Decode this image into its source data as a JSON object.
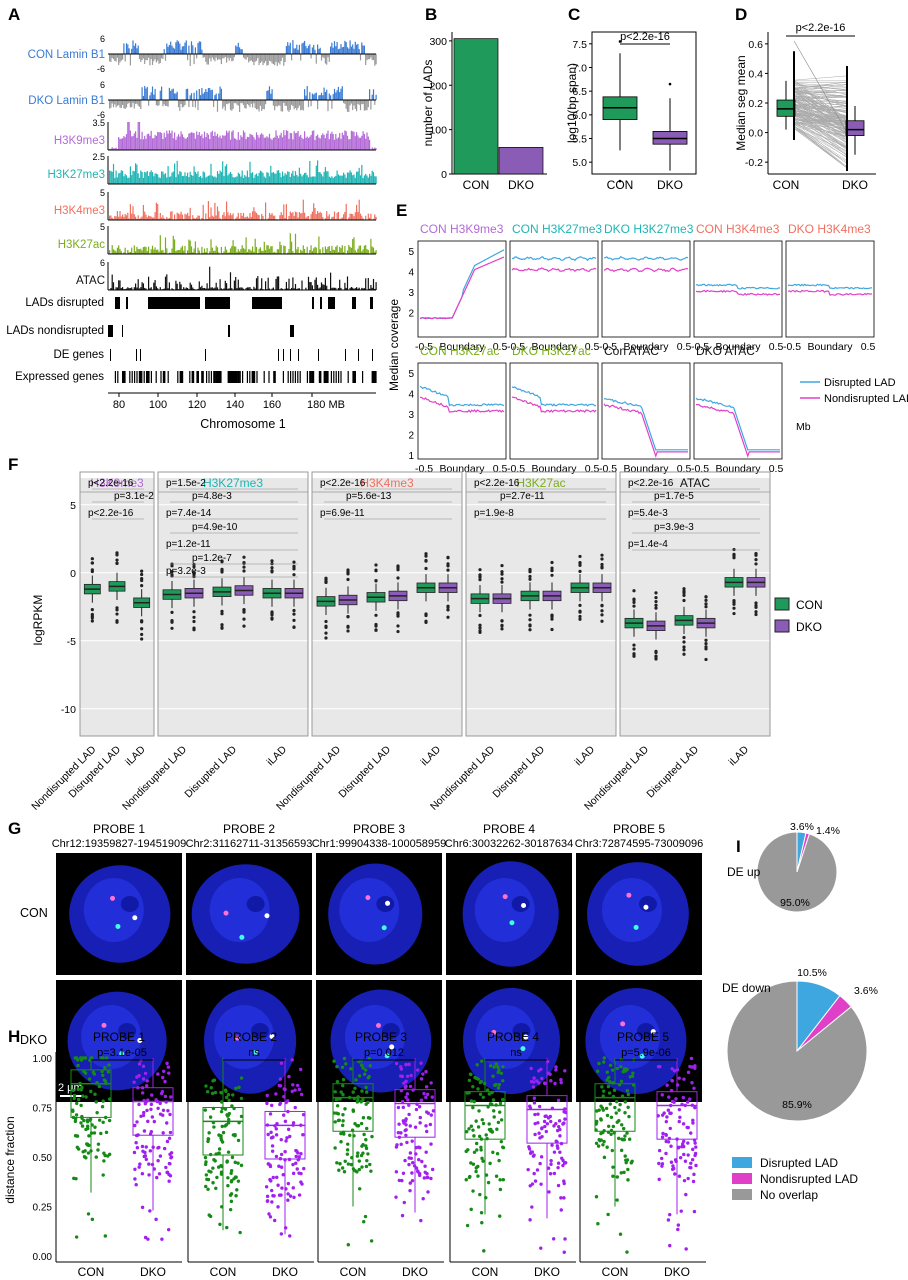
{
  "panel_letters": [
    "A",
    "B",
    "C",
    "D",
    "E",
    "F",
    "G",
    "H",
    "I"
  ],
  "panelA": {
    "tracks": [
      {
        "label": "CON Lamin B1",
        "color": "#3a7bd5",
        "top": "6",
        "bottom": "-6",
        "kind": "bi"
      },
      {
        "label": "DKO Lamin B1",
        "color": "#3a7bd5",
        "top": "6",
        "bottom": "-6",
        "kind": "bi"
      },
      {
        "label": "H3K9me3",
        "color": "#b36ad6",
        "top": "3.5",
        "bottom": "",
        "kind": "uni"
      },
      {
        "label": "H3K27me3",
        "color": "#1fb5b5",
        "top": "2.5",
        "bottom": "",
        "kind": "uni"
      },
      {
        "label": "H3K4me3",
        "color": "#f07060",
        "top": "5",
        "bottom": "",
        "kind": "uni"
      },
      {
        "label": "H3K27ac",
        "color": "#7aad1c",
        "top": "5",
        "bottom": "",
        "kind": "uni"
      },
      {
        "label": "ATAC",
        "color": "#111111",
        "top": "6",
        "bottom": "",
        "kind": "uni"
      }
    ],
    "bar_tracks": [
      "LADs disrupted",
      "LADs nondisrupted",
      "DE genes",
      "Expressed genes"
    ],
    "x_ticks": [
      "80",
      "100",
      "120",
      "140",
      "160",
      "180 MB"
    ],
    "xlabel": "Chromosome 1"
  },
  "chart_data": [
    {
      "id": "B",
      "type": "bar",
      "categories": [
        "CON",
        "DKO"
      ],
      "values": [
        305,
        60
      ],
      "ylabel": "number of LADs",
      "yticks": [
        "0",
        "100",
        "200",
        "300"
      ],
      "ylim": [
        0,
        320
      ],
      "colors": [
        "#1f9a5b",
        "#8a5cb5"
      ]
    },
    {
      "id": "C",
      "type": "box",
      "categories": [
        "CON",
        "DKO"
      ],
      "ylabel": "log10(bp span)",
      "yticks": [
        "5.0",
        "5.5",
        "6.0",
        "6.5",
        "7.0",
        "7.5"
      ],
      "ylim": [
        4.75,
        7.75
      ],
      "boxes": [
        {
          "q1": 5.9,
          "med": 6.15,
          "q3": 6.38,
          "lo": 5.25,
          "hi": 7.3
        },
        {
          "q1": 5.38,
          "med": 5.5,
          "q3": 5.65,
          "lo": 4.82,
          "hi": 6.35
        }
      ],
      "annotation": "p<2.2e-16"
    },
    {
      "id": "D",
      "type": "paired-box",
      "categories": [
        "CON",
        "DKO"
      ],
      "ylabel": "Median seg mean",
      "yticks": [
        "-0.2",
        "0.0",
        "0.2",
        "0.4",
        "0.6"
      ],
      "ylim": [
        -0.28,
        0.68
      ],
      "boxes": [
        {
          "q1": 0.11,
          "med": 0.16,
          "q3": 0.22,
          "lo": 0.02,
          "hi": 0.35
        },
        {
          "q1": -0.02,
          "med": 0.02,
          "q3": 0.08,
          "lo": -0.15,
          "hi": 0.18
        }
      ],
      "annotation": "p<2.2e-16"
    },
    {
      "id": "E",
      "type": "line",
      "ylabel": "Median coverage",
      "xlabel_ticks": [
        "-0.5",
        "Boundary",
        "0.5"
      ],
      "unit": "Mb",
      "yticks": [
        "1",
        "2",
        "3",
        "4",
        "5"
      ],
      "legend": [
        "Disrupted LAD",
        "Nondisrupted LAD"
      ],
      "legend_colors": [
        "#3fa7e0",
        "#e040c8"
      ]
    },
    {
      "id": "F",
      "type": "box",
      "ylabel": "logRPKM",
      "yticks": [
        "5",
        "0",
        "-5",
        "-10"
      ],
      "categories": [
        "Nondisrupted LAD",
        "Disrupted LAD",
        "iLAD"
      ],
      "legend": [
        "CON",
        "DKO"
      ],
      "legend_colors": [
        "#1f9a5b",
        "#8a5cb5"
      ]
    },
    {
      "id": "H",
      "type": "box",
      "ylabel": "distance fraction",
      "yticks": [
        "0.00",
        "0.25",
        "0.50",
        "0.75",
        "1.00"
      ],
      "categories": [
        "CON",
        "DKO"
      ]
    },
    {
      "id": "I",
      "type": "pie",
      "legend": [
        "Disrupted LAD",
        "Nondisrupted LAD",
        "No overlap"
      ],
      "colors": [
        "#3fa7e0",
        "#e040c8",
        "#999999"
      ],
      "pies": [
        {
          "label": "DE up",
          "values": [
            3.6,
            1.4,
            95.0
          ],
          "labels": [
            "3.6%",
            "1.4%",
            "95.0%"
          ]
        },
        {
          "label": "DE down",
          "values": [
            10.5,
            3.6,
            85.9
          ],
          "labels": [
            "10.5%",
            "3.6%",
            "85.9%"
          ]
        }
      ]
    }
  ],
  "panelE": {
    "row1": [
      {
        "title": "CON H3K9me3",
        "color": "#b36ad6"
      },
      {
        "title": "CON H3K27me3",
        "color": "#1fb5b5"
      },
      {
        "title": "DKO H3K27me3",
        "color": "#1fb5b5"
      },
      {
        "title": "CON H3K4me3",
        "color": "#f07060"
      },
      {
        "title": "DKO H3K4me3",
        "color": "#f07060"
      }
    ],
    "row2": [
      {
        "title": "CON H3K27ac",
        "color": "#7aad1c"
      },
      {
        "title": "DKO H3K27ac",
        "color": "#7aad1c"
      },
      {
        "title": "Con ATAC",
        "color": "#111111"
      },
      {
        "title": "DKO ATAC",
        "color": "#111111"
      }
    ]
  },
  "panelF": {
    "facets": [
      {
        "title": "H3K9me3",
        "color": "#b36ad6",
        "pvals": [
          "p<2.2e-16",
          "p=3.1e-2",
          "p<2.2e-16"
        ]
      },
      {
        "title": "H3K27me3",
        "color": "#1fb5b5",
        "pvals": [
          "p=1.5e-2",
          "p=4.8e-3",
          "p=7.4e-14",
          "p=4.9e-10",
          "p=1.2e-11",
          "p=1.2e-7",
          "p=3.2e-3"
        ]
      },
      {
        "title": "H3K4me3",
        "color": "#f07060",
        "pvals": [
          "p<2.2e-16",
          "p=5.6e-13",
          "p=6.9e-11"
        ]
      },
      {
        "title": "H3K27ac",
        "color": "#7aad1c",
        "pvals": [
          "p<2.2e-16",
          "p=2.7e-11",
          "p=1.9e-8"
        ]
      },
      {
        "title": "ATAC",
        "color": "#111111",
        "pvals": [
          "p<2.2e-16",
          "p=1.7e-5",
          "p=5.4e-3",
          "p=3.9e-3",
          "p=1.4e-4"
        ]
      }
    ]
  },
  "panelG": {
    "probes": [
      {
        "name": "PROBE 1",
        "coord": "Chr12:19359827-19451909"
      },
      {
        "name": "PROBE 2",
        "coord": "Chr2:31162711-31356593"
      },
      {
        "name": "PROBE 3",
        "coord": "Chr1:99904338-100058959"
      },
      {
        "name": "PROBE 4",
        "coord": "Chr6:30032262-30187634"
      },
      {
        "name": "PROBE 5",
        "coord": "Chr3:72874595-73009096"
      }
    ],
    "rows": [
      "CON",
      "DKO"
    ],
    "scale": "2 μm"
  },
  "panelH": {
    "probes": [
      {
        "name": "PROBE 1",
        "p": "p=3.1e-05"
      },
      {
        "name": "PROBE 2",
        "p": "ns"
      },
      {
        "name": "PROBE 3",
        "p": "p=0.012"
      },
      {
        "name": "PROBE 4",
        "p": "ns"
      },
      {
        "name": "PROBE 5",
        "p": "p=5.9e-06"
      }
    ]
  }
}
